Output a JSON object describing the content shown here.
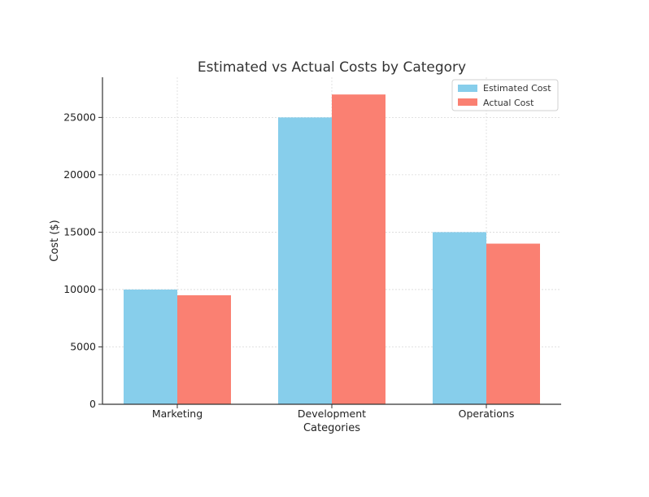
{
  "chart_data": {
    "type": "bar",
    "title": "Estimated vs Actual Costs by Category",
    "xlabel": "Categories",
    "ylabel": "Cost ($)",
    "categories": [
      "Marketing",
      "Development",
      "Operations"
    ],
    "series": [
      {
        "name": "Estimated Cost",
        "color": "#87CEEB",
        "values": [
          10000,
          25000,
          15000
        ]
      },
      {
        "name": "Actual Cost",
        "color": "#FA8072",
        "values": [
          9500,
          27000,
          14000
        ]
      }
    ],
    "ylim": [
      0,
      28500
    ],
    "yticks": [
      0,
      5000,
      10000,
      15000,
      20000,
      25000
    ],
    "grid": true,
    "legend_position": "top-right"
  }
}
